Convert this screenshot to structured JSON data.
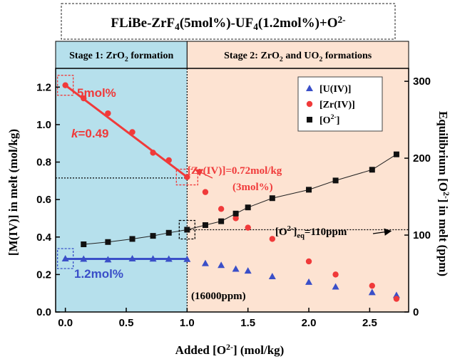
{
  "chart_data": {
    "type": "scatter",
    "title": "FLiBe-ZrF4(5mol%)-UF4(1.2mol%)+O2-",
    "xlabel": "Added [O2-] (mol/kg)",
    "ylabel": "[M(IV)] in melt (mol/kg)",
    "y2label": "Equilibrium [O2-] in melt (ppm)",
    "xlim": [
      -0.08,
      2.82
    ],
    "ylim": [
      0,
      1.3
    ],
    "y2lim": [
      0,
      316.8
    ],
    "x_ticks": [
      "0.0",
      "0.5",
      "1.0",
      "1.5",
      "2.0",
      "2.5"
    ],
    "y_ticks": [
      "0.0",
      "0.2",
      "0.4",
      "0.6",
      "0.8",
      "1.0",
      "1.2"
    ],
    "y2_ticks": [
      "0",
      "100",
      "200",
      "300"
    ],
    "legend_position": "top-right",
    "stages": [
      {
        "label": "Stage 1: ZrO2 formation",
        "range": [
          -0.08,
          1.0
        ],
        "color": "#b6e0ec"
      },
      {
        "label": "Stage 2: ZrO2 and UO2 formations",
        "range": [
          1.0,
          2.82
        ],
        "color": "#fde3d2"
      }
    ],
    "series": [
      {
        "name": "[U(IV)]",
        "axis": "left",
        "marker": "triangle",
        "color": "#3a4fc8",
        "x": [
          0.0,
          0.15,
          0.35,
          0.55,
          0.72,
          0.85,
          1.0,
          1.15,
          1.28,
          1.4,
          1.5,
          1.7,
          2.0,
          2.22,
          2.52,
          2.72
        ],
        "y": [
          0.285,
          0.283,
          0.28,
          0.285,
          0.284,
          0.283,
          0.282,
          0.26,
          0.25,
          0.23,
          0.22,
          0.19,
          0.16,
          0.135,
          0.105,
          0.09
        ]
      },
      {
        "name": "[Zr(IV)]",
        "axis": "left",
        "marker": "circle",
        "color": "#f03a3a",
        "x": [
          0.0,
          0.15,
          0.35,
          0.55,
          0.72,
          0.85,
          1.0,
          1.15,
          1.28,
          1.4,
          1.5,
          1.7,
          2.0,
          2.22,
          2.52,
          2.72
        ],
        "y": [
          1.21,
          1.14,
          1.06,
          0.96,
          0.85,
          0.81,
          0.72,
          0.64,
          0.55,
          0.5,
          0.45,
          0.39,
          0.27,
          0.2,
          0.14,
          0.07
        ]
      },
      {
        "name": "[O2-]",
        "axis": "right",
        "marker": "square",
        "color": "#111111",
        "x": [
          0.15,
          0.35,
          0.55,
          0.72,
          0.85,
          1.0,
          1.15,
          1.28,
          1.4,
          1.5,
          1.7,
          2.0,
          2.22,
          2.52,
          2.72
        ],
        "y": [
          88,
          91,
          95,
          99,
          103,
          107,
          113,
          118,
          128,
          136,
          148,
          159,
          171,
          185,
          205
        ]
      }
    ],
    "fit_lines": [
      {
        "color": "#f03a3a",
        "x": [
          0.0,
          1.0
        ],
        "y": [
          1.21,
          0.72
        ]
      },
      {
        "color": "#3a4fc8",
        "x": [
          0.0,
          1.0
        ],
        "y": [
          0.283,
          0.283
        ]
      }
    ],
    "annotations": {
      "zr_start": "5mol%",
      "slope": "k=0.49",
      "zr_end": "[Zr(IV)]=0.72mol/kg",
      "zr_end_pct": "(3mol%)",
      "u_level": "1.2mol%",
      "o_eq": "[O2-]eq=110ppm",
      "o_added": "(16000ppm)"
    }
  }
}
